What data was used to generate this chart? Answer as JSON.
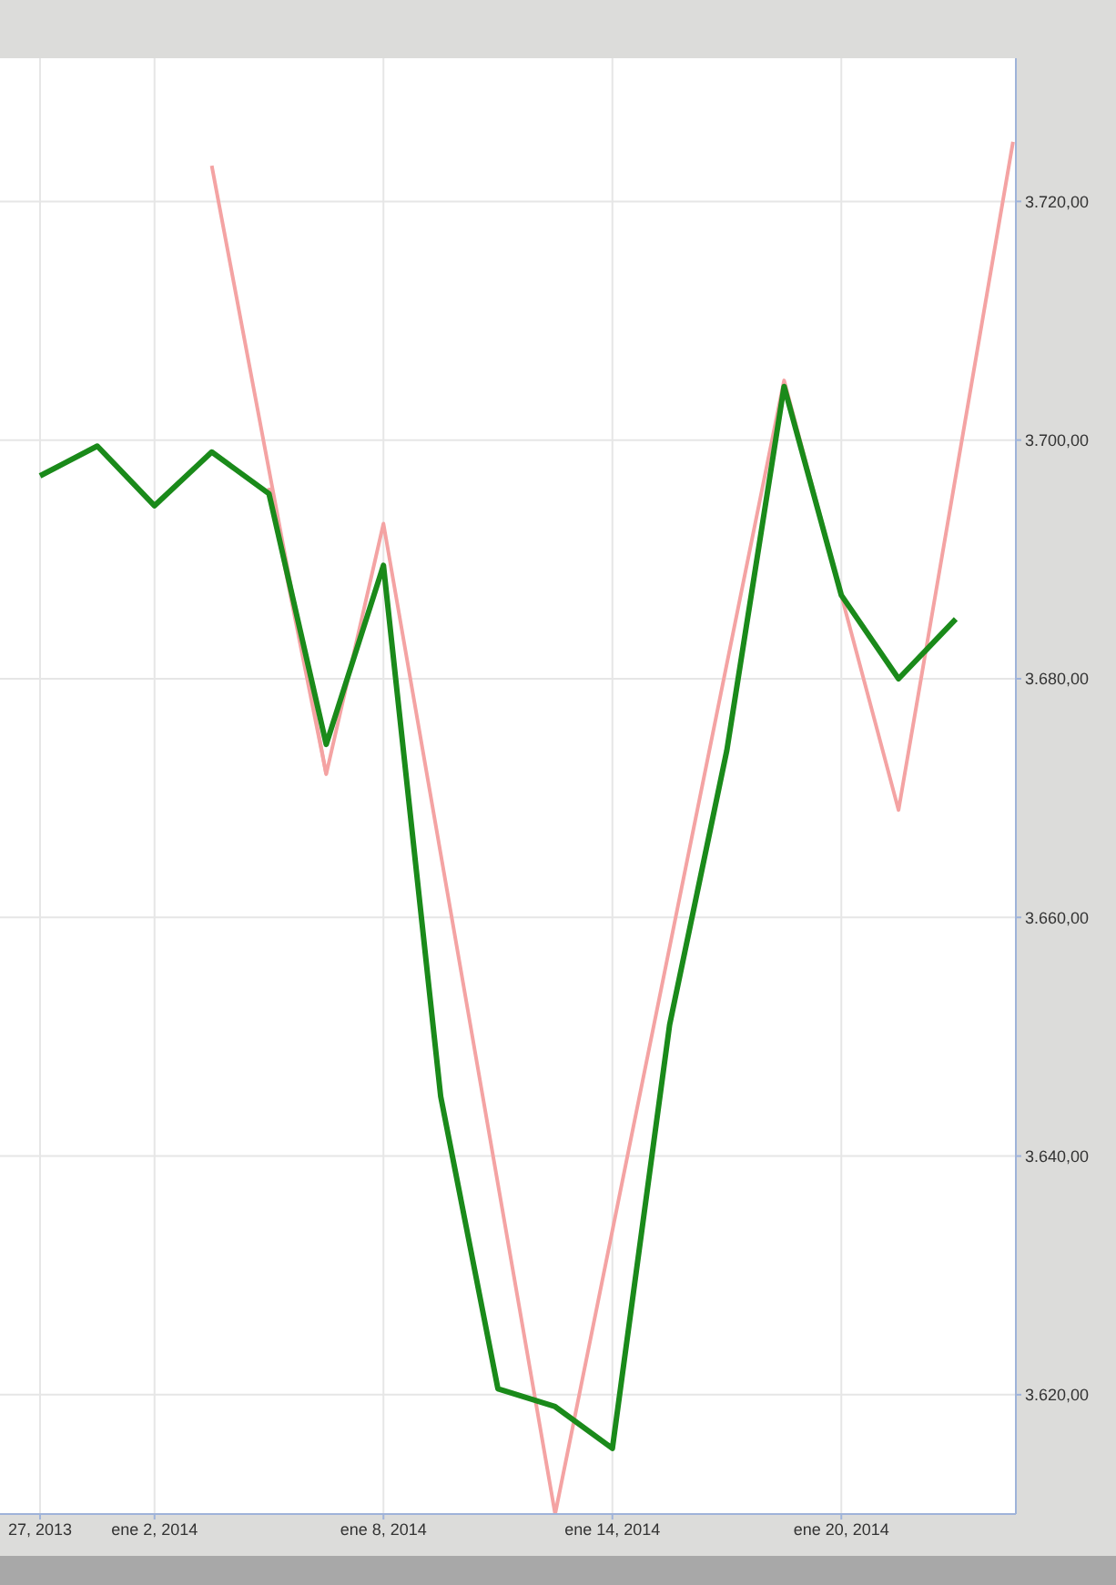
{
  "chart_data": {
    "type": "line",
    "grid": true,
    "marker": "none",
    "line_style": "solid",
    "categories": [
      "27, 2013",
      null,
      "ene 2, 2014",
      null,
      null,
      null,
      "ene 8, 2014",
      null,
      null,
      null,
      "ene 14, 2014",
      null,
      null,
      null,
      "ene 20, 2014",
      null,
      null,
      null
    ],
    "ylim": [
      3610,
      3732
    ],
    "yticks": [
      {
        "value": 3620,
        "label": "3.620,00"
      },
      {
        "value": 3640,
        "label": "3.640,00"
      },
      {
        "value": 3660,
        "label": "3.660,00"
      },
      {
        "value": 3680,
        "label": "3.680,00"
      },
      {
        "value": 3700,
        "label": "3.700,00"
      },
      {
        "value": 3720,
        "label": "3.720,00"
      }
    ],
    "series": [
      {
        "color": "#f4a3a3",
        "values": [
          null,
          null,
          null,
          3723,
          null,
          3672,
          3693,
          null,
          null,
          3610,
          null,
          null,
          null,
          3705,
          null,
          3669,
          null,
          3725
        ]
      },
      {
        "color": "#f4a3a3",
        "values": [
          null,
          null,
          null,
          null,
          3696,
          3672,
          null,
          null,
          null,
          null,
          null,
          null,
          null,
          null,
          null,
          null,
          null,
          null
        ]
      },
      {
        "color": "#1a8a1a",
        "values": [
          3697,
          3699.5,
          3694.5,
          3699,
          3695.5,
          3674.5,
          3689.5,
          3645,
          3620.5,
          3619,
          3615.5,
          3651,
          3674,
          3704.5,
          3687,
          3680,
          3685,
          null
        ]
      }
    ]
  }
}
